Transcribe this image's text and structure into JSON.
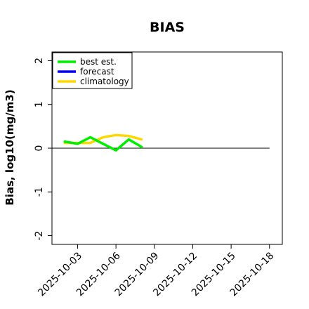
{
  "chart_data": {
    "type": "line",
    "title": "BIAS",
    "ylabel": "Bias, log10(mg/m3)",
    "xlabel": "",
    "xlim": [
      "2025-10-01",
      "2025-10-19"
    ],
    "ylim": [
      -2.2,
      2.2
    ],
    "yticks": [
      -2,
      -1,
      0,
      1,
      2
    ],
    "xticks": [
      {
        "value": "2025-10-03",
        "label": "2025-10-03",
        "color": "#000000"
      },
      {
        "value": "2025-10-06",
        "label": "2025-10-06",
        "color": "#000000"
      },
      {
        "value": "2025-10-09",
        "label": "2025-10-09",
        "color": "#228b22"
      },
      {
        "value": "2025-10-12",
        "label": "2025-10-12",
        "color": "#000000"
      },
      {
        "value": "2025-10-15",
        "label": "2025-10-15",
        "color": "#000000"
      },
      {
        "value": "2025-10-18",
        "label": "2025-10-18",
        "color": "#000000"
      }
    ],
    "reference_line": {
      "y": 0,
      "x_from": "2025-10-01",
      "x_to": "2025-10-18",
      "color": "#000000"
    },
    "legend_position": "top-left",
    "series": [
      {
        "name": "best est.",
        "color": "#00ee00",
        "x": [
          "2025-10-02",
          "2025-10-03",
          "2025-10-04",
          "2025-10-05",
          "2025-10-06",
          "2025-10-07",
          "2025-10-08"
        ],
        "y": [
          0.15,
          0.1,
          0.25,
          0.1,
          -0.05,
          0.2,
          0.03
        ]
      },
      {
        "name": "forecast",
        "color": "#0000ee",
        "x": [],
        "y": []
      },
      {
        "name": "climatology",
        "color": "#ffd700",
        "x": [
          "2025-10-02",
          "2025-10-03",
          "2025-10-04",
          "2025-10-05",
          "2025-10-06",
          "2025-10-07",
          "2025-10-08"
        ],
        "y": [
          0.12,
          0.12,
          0.12,
          0.25,
          0.3,
          0.28,
          0.2
        ]
      }
    ]
  }
}
